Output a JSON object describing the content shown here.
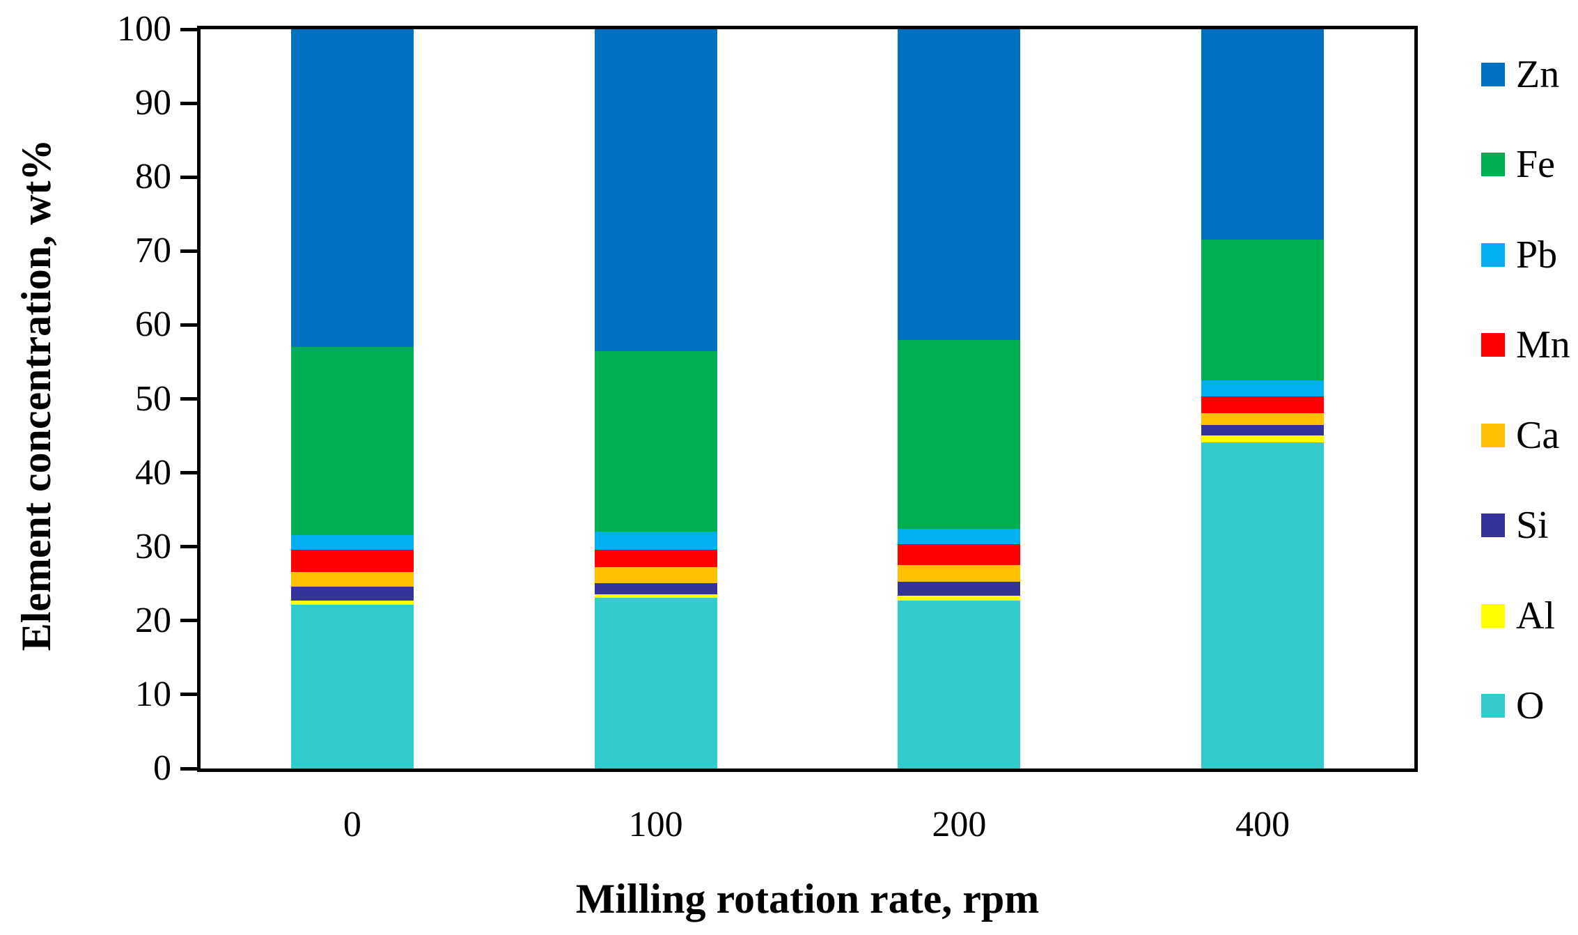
{
  "chart_data": {
    "type": "bar",
    "stacked": true,
    "title": "",
    "xlabel": "Milling rotation rate, rpm",
    "ylabel": "Element concentration, wt%",
    "categories": [
      "0",
      "100",
      "200",
      "400"
    ],
    "series": [
      {
        "name": "O",
        "color": "#33CCCC",
        "values": [
          22.1,
          23.1,
          22.7,
          44.1
        ]
      },
      {
        "name": "Al",
        "color": "#FFFF00",
        "values": [
          0.6,
          0.5,
          0.7,
          0.9
        ]
      },
      {
        "name": "Si",
        "color": "#333399",
        "values": [
          1.9,
          1.5,
          1.9,
          1.5
        ]
      },
      {
        "name": "Ca",
        "color": "#FFC000",
        "values": [
          2.0,
          2.1,
          2.2,
          1.6
        ]
      },
      {
        "name": "Mn",
        "color": "#FF0000",
        "values": [
          3.0,
          2.4,
          2.8,
          2.2
        ]
      },
      {
        "name": "Pb",
        "color": "#00B0F0",
        "values": [
          2.0,
          2.4,
          2.1,
          2.2
        ]
      },
      {
        "name": "Fe",
        "color": "#00B050",
        "values": [
          25.4,
          24.5,
          25.6,
          19.0
        ]
      },
      {
        "name": "Zn",
        "color": "#0070C0",
        "values": [
          43.0,
          43.5,
          42.0,
          28.5
        ]
      }
    ],
    "legend": {
      "position": "right",
      "order": [
        "Zn",
        "Fe",
        "Pb",
        "Mn",
        "Ca",
        "Si",
        "Al",
        "O"
      ]
    },
    "y_axis": {
      "min": 0,
      "max": 100,
      "tick_step": 10,
      "ticks": [
        0,
        10,
        20,
        30,
        40,
        50,
        60,
        70,
        80,
        90,
        100
      ]
    },
    "x_axis": {
      "title": "Milling rotation rate, rpm"
    },
    "grid": false,
    "bar_gap_ratio": 0.6
  }
}
